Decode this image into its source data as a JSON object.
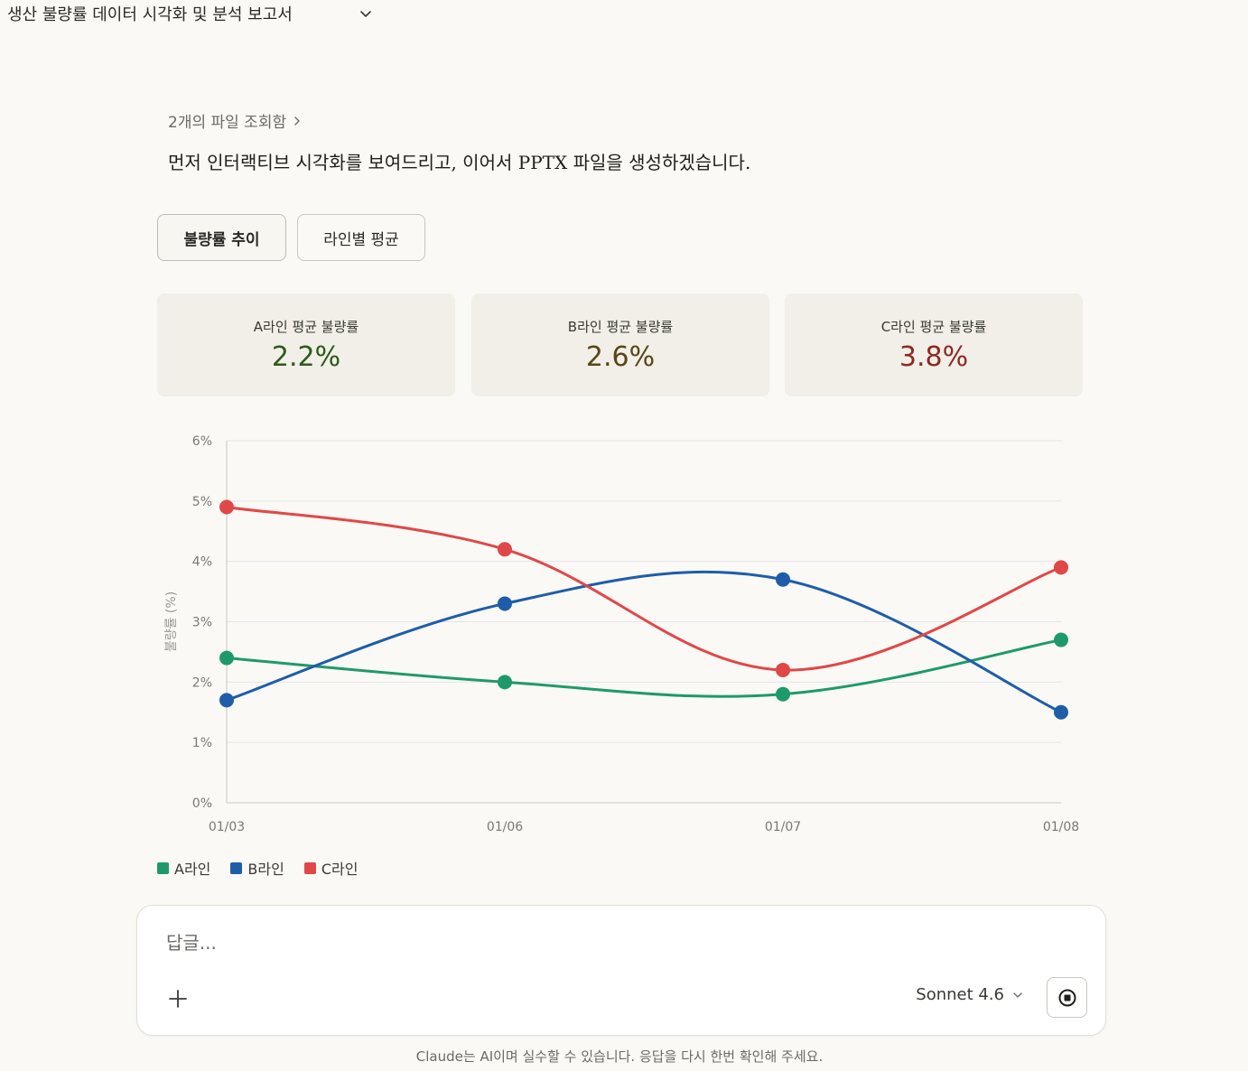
{
  "header": {
    "chat_title": "생산 불량률 데이터 시각화 및 분석 보고서"
  },
  "message": {
    "files_viewed": "2개의 파일 조회함",
    "text": "먼저 인터랙티브 시각화를 보여드리고, 이어서 PPTX 파일을 생성하겠습니다."
  },
  "tabs": [
    {
      "label": "불량률 추이",
      "active": true
    },
    {
      "label": "라인별 평균",
      "active": false
    }
  ],
  "kpis": [
    {
      "label": "A라인 평균 불량률",
      "value": "2.2%",
      "color": "#2d5a1b"
    },
    {
      "label": "B라인 평균 불량률",
      "value": "2.6%",
      "color": "#5a4515"
    },
    {
      "label": "C라인 평균 불량률",
      "value": "3.8%",
      "color": "#8b2a22"
    }
  ],
  "chart_data": {
    "type": "line",
    "categories": [
      "01/03",
      "01/06",
      "01/07",
      "01/08"
    ],
    "series": [
      {
        "name": "A라인",
        "color": "#1e9a6a",
        "values": [
          2.4,
          2.0,
          1.8,
          2.7
        ]
      },
      {
        "name": "B라인",
        "color": "#1f5da8",
        "values": [
          1.7,
          3.3,
          3.7,
          1.5
        ]
      },
      {
        "name": "C라인",
        "color": "#e04848",
        "values": [
          4.9,
          4.2,
          2.2,
          3.9
        ]
      }
    ],
    "ylabel": "불량률 (%)",
    "ylim": [
      0,
      6
    ],
    "yticks": [
      "0%",
      "1%",
      "2%",
      "3%",
      "4%",
      "5%",
      "6%"
    ],
    "legend": "bottom-left",
    "grid": true
  },
  "composer": {
    "placeholder": "답글...",
    "model": "Sonnet 4.6"
  },
  "footer": {
    "disclaimer": "Claude는 AI이며 실수할 수 있습니다. 응답을 다시 한번 확인해 주세요."
  }
}
